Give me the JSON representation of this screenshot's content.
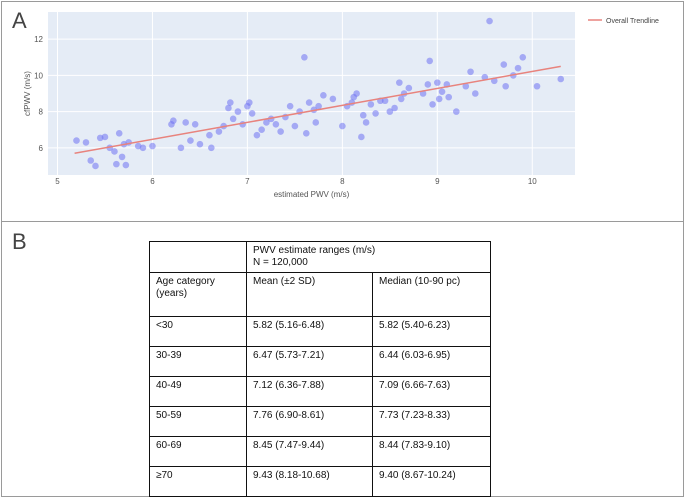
{
  "panels": {
    "a_label": "A",
    "b_label": "B"
  },
  "chart_data": {
    "type": "scatter",
    "xlabel": "estimated PWV (m/s)",
    "ylabel": "cfPWV (m/s)",
    "xlim": [
      4.9,
      10.45
    ],
    "ylim": [
      4.5,
      13.5
    ],
    "xticks": [
      5,
      6,
      7,
      8,
      9,
      10
    ],
    "yticks": [
      6,
      8,
      10,
      12
    ],
    "grid": true,
    "legend_position": "top-right",
    "point_color": "#6f73f2",
    "background_color": "#e5ecf6",
    "trend_color": "#e8837d",
    "trendline": {
      "name": "Overall Trendline",
      "x": [
        5.18,
        10.3
      ],
      "y": [
        5.7,
        10.5
      ]
    },
    "points": [
      [
        5.2,
        6.4
      ],
      [
        5.3,
        6.3
      ],
      [
        5.35,
        5.3
      ],
      [
        5.4,
        5.0
      ],
      [
        5.45,
        6.55
      ],
      [
        5.5,
        6.6
      ],
      [
        5.55,
        6.0
      ],
      [
        5.6,
        5.8
      ],
      [
        5.62,
        5.1
      ],
      [
        5.65,
        6.8
      ],
      [
        5.68,
        5.5
      ],
      [
        5.7,
        6.2
      ],
      [
        5.72,
        5.05
      ],
      [
        5.75,
        6.3
      ],
      [
        5.85,
        6.1
      ],
      [
        5.9,
        6.0
      ],
      [
        6.0,
        6.1
      ],
      [
        6.2,
        7.3
      ],
      [
        6.22,
        7.5
      ],
      [
        6.3,
        6.0
      ],
      [
        6.35,
        7.4
      ],
      [
        6.4,
        6.4
      ],
      [
        6.45,
        7.3
      ],
      [
        6.5,
        6.2
      ],
      [
        6.6,
        6.7
      ],
      [
        6.62,
        6.0
      ],
      [
        6.7,
        6.9
      ],
      [
        6.75,
        7.2
      ],
      [
        6.8,
        8.2
      ],
      [
        6.82,
        8.5
      ],
      [
        6.85,
        7.6
      ],
      [
        6.9,
        8.0
      ],
      [
        6.95,
        7.3
      ],
      [
        7.0,
        8.3
      ],
      [
        7.02,
        8.5
      ],
      [
        7.05,
        7.9
      ],
      [
        7.1,
        6.7
      ],
      [
        7.15,
        7.0
      ],
      [
        7.2,
        7.4
      ],
      [
        7.25,
        7.6
      ],
      [
        7.3,
        7.3
      ],
      [
        7.35,
        6.9
      ],
      [
        7.4,
        7.7
      ],
      [
        7.45,
        8.3
      ],
      [
        7.5,
        7.2
      ],
      [
        7.55,
        8.0
      ],
      [
        7.6,
        11.0
      ],
      [
        7.62,
        6.8
      ],
      [
        7.65,
        8.5
      ],
      [
        7.7,
        8.1
      ],
      [
        7.72,
        7.4
      ],
      [
        7.75,
        8.3
      ],
      [
        7.8,
        8.9
      ],
      [
        7.9,
        8.7
      ],
      [
        8.0,
        7.2
      ],
      [
        8.05,
        8.3
      ],
      [
        8.1,
        8.5
      ],
      [
        8.12,
        8.8
      ],
      [
        8.15,
        9.0
      ],
      [
        8.2,
        6.6
      ],
      [
        8.22,
        7.8
      ],
      [
        8.25,
        7.4
      ],
      [
        8.3,
        8.4
      ],
      [
        8.35,
        7.9
      ],
      [
        8.4,
        8.6
      ],
      [
        8.45,
        8.6
      ],
      [
        8.5,
        8.0
      ],
      [
        8.55,
        8.2
      ],
      [
        8.6,
        9.6
      ],
      [
        8.62,
        8.7
      ],
      [
        8.65,
        9.0
      ],
      [
        8.7,
        9.3
      ],
      [
        8.85,
        9.0
      ],
      [
        8.9,
        9.5
      ],
      [
        8.92,
        10.8
      ],
      [
        8.95,
        8.4
      ],
      [
        9.0,
        9.6
      ],
      [
        9.02,
        8.7
      ],
      [
        9.05,
        9.1
      ],
      [
        9.1,
        9.5
      ],
      [
        9.12,
        8.8
      ],
      [
        9.2,
        8.0
      ],
      [
        9.3,
        9.4
      ],
      [
        9.35,
        10.2
      ],
      [
        9.4,
        9.0
      ],
      [
        9.5,
        9.9
      ],
      [
        9.55,
        13.0
      ],
      [
        9.6,
        9.7
      ],
      [
        9.7,
        10.6
      ],
      [
        9.72,
        9.4
      ],
      [
        9.8,
        10.0
      ],
      [
        9.85,
        10.4
      ],
      [
        9.9,
        11.0
      ],
      [
        10.05,
        9.4
      ],
      [
        10.3,
        9.8
      ]
    ]
  },
  "table": {
    "group_header": [
      "PWV estimate ranges (m/s)",
      "N = 120,000"
    ],
    "column_headers": [
      "Age category (years)",
      "Mean (±2 SD)",
      "Median (10-90 pc)"
    ],
    "rows": [
      [
        "<30",
        "5.82 (5.16-6.48)",
        "5.82 (5.40-6.23)"
      ],
      [
        "30-39",
        "6.47 (5.73-7.21)",
        "6.44 (6.03-6.95)"
      ],
      [
        "40-49",
        "7.12 (6.36-7.88)",
        "7.09 (6.66-7.63)"
      ],
      [
        "50-59",
        "7.76 (6.90-8.61)",
        "7.73 (7.23-8.33)"
      ],
      [
        "60-69",
        "8.45 (7.47-9.44)",
        "8.44 (7.83-9.10)"
      ],
      [
        "≥70",
        "9.43 (8.18-10.68)",
        "9.40 (8.67-10.24)"
      ]
    ]
  }
}
